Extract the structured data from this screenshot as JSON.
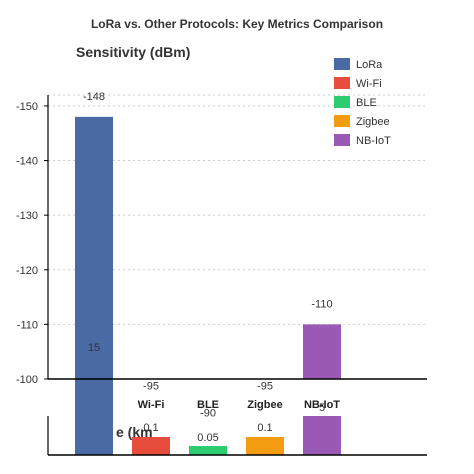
{
  "chart_data": {
    "type": "bar",
    "title": "LoRa vs. Other Protocols: Key Metrics Comparison",
    "legend_position": "top-right",
    "categories": [
      "LoRa",
      "Wi-Fi",
      "BLE",
      "Zigbee",
      "NB-IoT"
    ],
    "colors": [
      "#4a6aa5",
      "#e74c3c",
      "#2ecc71",
      "#f39c12",
      "#9b59b6"
    ],
    "panels": [
      {
        "name": "sensitivity",
        "subtitle": "Sensitivity (dBm)",
        "values": [
          -148,
          -95,
          -90,
          -95,
          -110
        ],
        "value_labels": [
          "-148",
          "-95",
          "-90",
          "-95",
          "-110"
        ],
        "ylim": [
          -152,
          -100
        ],
        "y_ticks": [
          -150,
          -140,
          -130,
          -120,
          -110,
          -100
        ],
        "y_tick_labels": [
          "-150",
          "-140",
          "-130",
          "-120",
          "-110",
          "-100"
        ],
        "grid": true
      },
      {
        "name": "range",
        "subtitle_partial": "e (km",
        "values": [
          15,
          0.1,
          0.05,
          0.1,
          5
        ],
        "value_labels": [
          "15",
          "0.1",
          "0.05",
          "0.1",
          "5"
        ]
      }
    ]
  }
}
